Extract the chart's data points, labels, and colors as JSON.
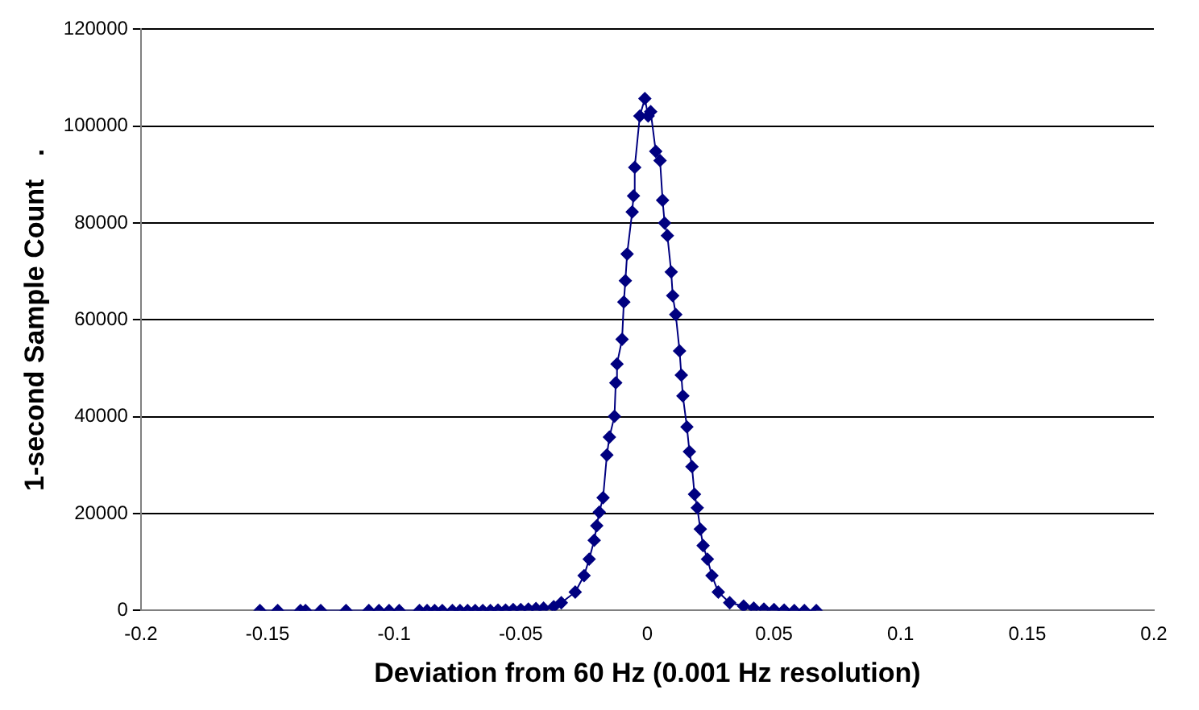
{
  "chart_data": {
    "type": "line",
    "xlabel": "Deviation from 60 Hz (0.001 Hz resolution)",
    "ylabel": "1-second Sample Count   .",
    "xlim": [
      -0.2,
      0.2
    ],
    "xticks": [
      -0.2,
      -0.15,
      -0.1,
      -0.05,
      0,
      0.05,
      0.1,
      0.15,
      0.2
    ],
    "ylim": [
      0,
      120000
    ],
    "yticks": [
      0,
      20000,
      40000,
      60000,
      80000,
      100000,
      120000
    ],
    "grid": "y",
    "legend": false,
    "marker": "diamond",
    "line_style": "solid",
    "series": [
      {
        "color": "#000080",
        "x": [
          -0.153,
          -0.146,
          -0.137,
          -0.135,
          -0.129,
          -0.119,
          -0.11,
          -0.106,
          -0.102,
          -0.098,
          -0.09,
          -0.087,
          -0.084,
          -0.081,
          -0.077,
          -0.074,
          -0.071,
          -0.068,
          -0.065,
          -0.062,
          -0.059,
          -0.056,
          -0.053,
          -0.05,
          -0.047,
          -0.044,
          -0.041,
          -0.037,
          -0.034,
          -0.0285,
          -0.025,
          -0.023,
          -0.021,
          -0.02,
          -0.019,
          -0.0175,
          -0.016,
          -0.015,
          -0.013,
          -0.0125,
          -0.012,
          -0.01,
          -0.0093,
          -0.0087,
          -0.008,
          -0.006,
          -0.0055,
          -0.005,
          -0.003,
          -0.001,
          0.0003,
          0.0013,
          0.0033,
          0.005,
          0.006,
          0.0068,
          0.0079,
          0.0094,
          0.01,
          0.0112,
          0.0127,
          0.0134,
          0.014,
          0.0156,
          0.0166,
          0.0176,
          0.0186,
          0.0197,
          0.0209,
          0.022,
          0.0237,
          0.0255,
          0.028,
          0.0325,
          0.038,
          0.042,
          0.046,
          0.05,
          0.054,
          0.058,
          0.062,
          0.0667
        ],
        "values": [
          0,
          0,
          0,
          0,
          0,
          0,
          0,
          0,
          0,
          0,
          0,
          0,
          0,
          0,
          0,
          0,
          0,
          0,
          0,
          0,
          100,
          100,
          200,
          200,
          300,
          400,
          500,
          800,
          1600,
          3800,
          7200,
          10600,
          14500,
          17500,
          20300,
          23300,
          32100,
          35800,
          40100,
          47000,
          50900,
          56000,
          63700,
          68100,
          73600,
          82300,
          85600,
          91500,
          102100,
          105700,
          102100,
          103000,
          94800,
          92900,
          84700,
          80000,
          77400,
          69900,
          65000,
          61100,
          53600,
          48600,
          44300,
          37900,
          32800,
          29700,
          24000,
          21200,
          16800,
          13400,
          10600,
          7200,
          3800,
          1600,
          900,
          500,
          300,
          200,
          100,
          0,
          0,
          0
        ]
      }
    ]
  }
}
